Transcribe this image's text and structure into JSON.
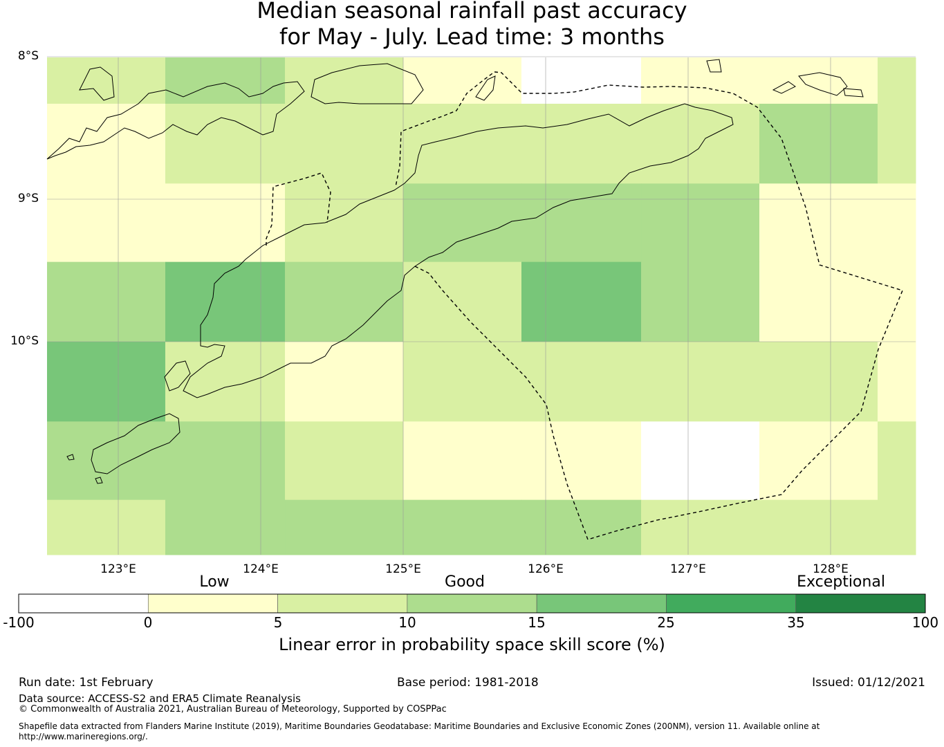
{
  "title": {
    "line1": "Median seasonal rainfall past accuracy",
    "line2": "for May - July. Lead time: 3 months"
  },
  "map": {
    "lat_labels": [
      "8°S",
      "9°S",
      "10°S"
    ],
    "lon_labels": [
      "123°E",
      "124°E",
      "125°E",
      "126°E",
      "127°E",
      "128°E"
    ],
    "lat_range": [
      -11.5,
      -8.0
    ],
    "lon_range": [
      122.5,
      128.6
    ],
    "grid_lon_edges": [
      122.5,
      123.33,
      124.17,
      125.0,
      125.83,
      126.67,
      127.5,
      128.33,
      128.6
    ],
    "grid_lat_edges": [
      -8.0,
      -8.33,
      -8.89,
      -9.44,
      -10.0,
      -10.56,
      -11.11,
      -11.5
    ],
    "skill_class_grid": [
      [
        2,
        3,
        2,
        1,
        0,
        1,
        1,
        2
      ],
      [
        1,
        2,
        2,
        2,
        2,
        2,
        3,
        2
      ],
      [
        1,
        1,
        2,
        3,
        3,
        3,
        1,
        1
      ],
      [
        3,
        4,
        3,
        2,
        4,
        3,
        1,
        1
      ],
      [
        4,
        2,
        1,
        2,
        2,
        2,
        2,
        1
      ],
      [
        3,
        3,
        2,
        1,
        1,
        0,
        1,
        2
      ],
      [
        2,
        3,
        3,
        3,
        3,
        2,
        2,
        2
      ]
    ]
  },
  "colorbar": {
    "category_labels": [
      "Low",
      "Good",
      "Exceptional"
    ],
    "tick_labels": [
      "-100",
      "0",
      "5",
      "10",
      "15",
      "25",
      "35",
      "100"
    ],
    "colors": [
      "#ffffff",
      "#ffffcc",
      "#d9f0a3",
      "#addd8e",
      "#78c679",
      "#41ab5d",
      "#238443"
    ],
    "title": "Linear error in probability space skill score (%)"
  },
  "footer": {
    "run_date": "Run date: 1st February",
    "base_period": "Base period: 1981-2018",
    "issued": "Issued: 01/12/2021",
    "data_source": "Data source: ACCESS-S2 and ERA5 Climate Reanalysis",
    "copyright": "© Commonwealth of Australia 2021, Australian Bureau of Meteorology, Supported by COSPPac",
    "shapefile_line1": "Shapefile data extracted from Flanders Marine Institute (2019), Maritime Boundaries Geodatabase: Maritime Boundaries and Exclusive Economic Zones (200NM), version 11. Available online at",
    "shapefile_line2": "http://www.marineregions.org/."
  }
}
